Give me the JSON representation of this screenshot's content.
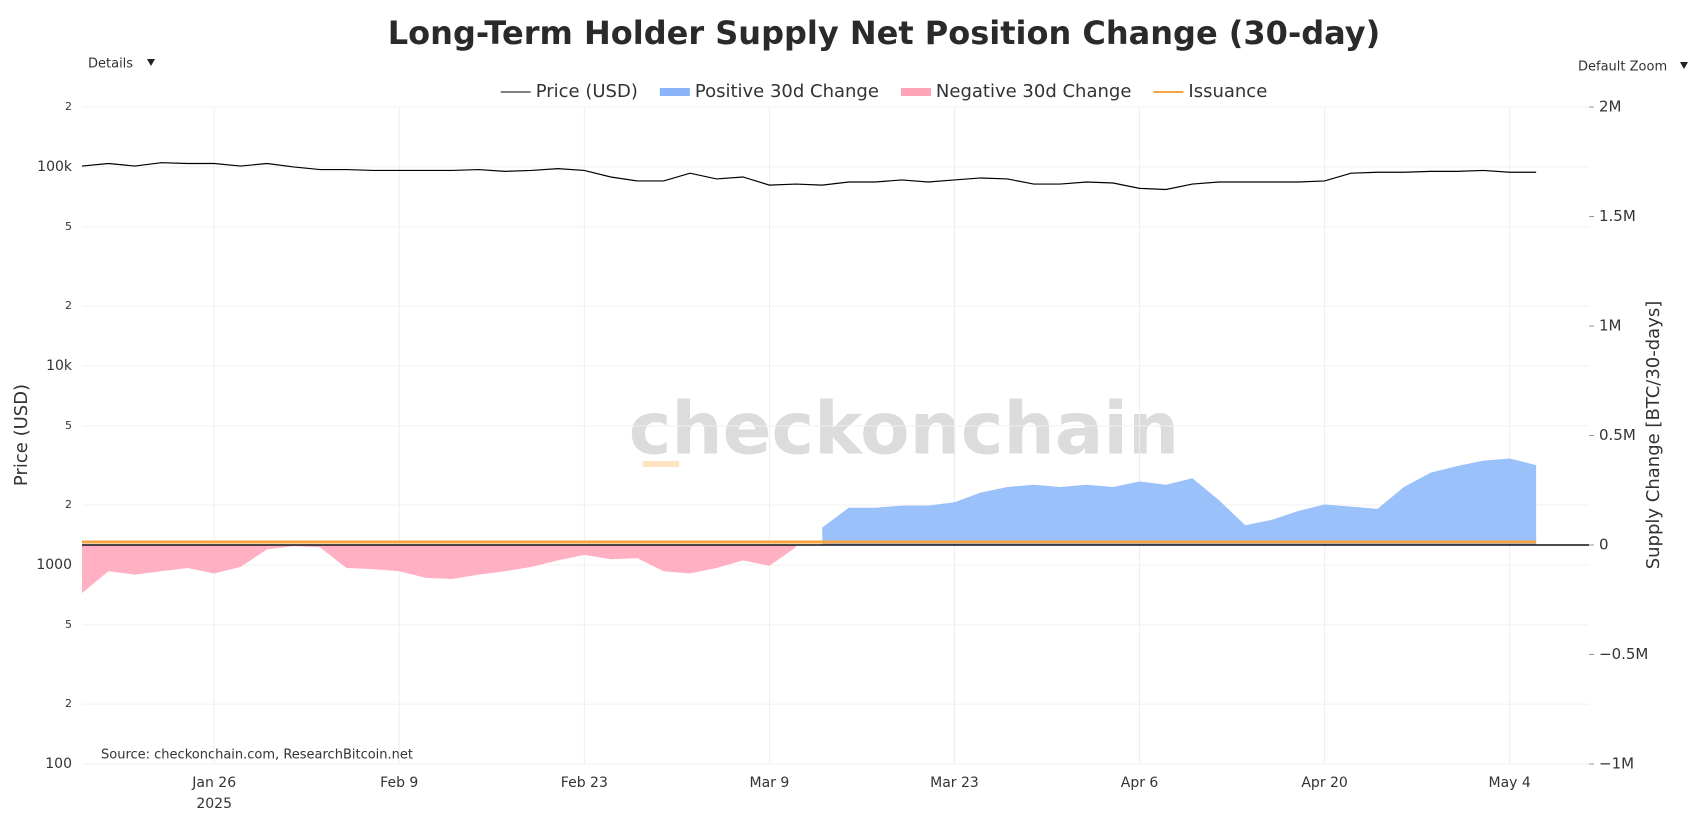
{
  "controls": {
    "details": "Details",
    "zoom": "Default Zoom"
  },
  "chart_data": {
    "type": "line",
    "title": "Long-Term Holder Supply Net Position Change (30-day)",
    "ylabel": "Price (USD)",
    "y2label": "Supply Change [BTC/30-days]",
    "watermark": "checkonchain",
    "source": "Source: checkonchain.com, ResearchBitcoin.net",
    "log_y": true,
    "grid": true,
    "xlim": [
      "2025-01-16",
      "2025-05-10"
    ],
    "xticks": [
      {
        "value": "2025-01-26",
        "label": "Jan 26",
        "sublabel": "2025"
      },
      {
        "value": "2025-02-09",
        "label": "Feb 9"
      },
      {
        "value": "2025-02-23",
        "label": "Feb 23"
      },
      {
        "value": "2025-03-09",
        "label": "Mar 9"
      },
      {
        "value": "2025-03-23",
        "label": "Mar 23"
      },
      {
        "value": "2025-04-06",
        "label": "Apr 6"
      },
      {
        "value": "2025-04-20",
        "label": "Apr 20"
      },
      {
        "value": "2025-05-04",
        "label": "May 4"
      }
    ],
    "ylim": [
      100,
      200000
    ],
    "yticks": [
      100,
      {
        "value": 200,
        "label": "2"
      },
      {
        "value": 500,
        "label": "5"
      },
      1000,
      {
        "value": 2000,
        "label": "2"
      },
      {
        "value": 5000,
        "label": "5"
      },
      {
        "value": 10000,
        "label": "10k"
      },
      {
        "value": 20000,
        "label": "2"
      },
      {
        "value": 50000,
        "label": "5"
      },
      {
        "value": 100000,
        "label": "100k"
      },
      {
        "value": 200000,
        "label": "2"
      }
    ],
    "y2lim": [
      -1000000,
      2000000
    ],
    "y2ticks": [
      {
        "value": -1000000,
        "label": "−1M"
      },
      {
        "value": -500000,
        "label": "−0.5M"
      },
      0,
      {
        "value": 500000,
        "label": "0.5M"
      },
      {
        "value": 1000000,
        "label": "1M"
      },
      {
        "value": 1500000,
        "label": "1.5M"
      },
      {
        "value": 2000000,
        "label": "2M"
      }
    ],
    "x": [
      "2025-01-16",
      "2025-01-18",
      "2025-01-20",
      "2025-01-22",
      "2025-01-24",
      "2025-01-26",
      "2025-01-28",
      "2025-01-30",
      "2025-02-01",
      "2025-02-03",
      "2025-02-05",
      "2025-02-07",
      "2025-02-09",
      "2025-02-11",
      "2025-02-13",
      "2025-02-15",
      "2025-02-17",
      "2025-02-19",
      "2025-02-21",
      "2025-02-23",
      "2025-02-25",
      "2025-02-27",
      "2025-03-01",
      "2025-03-03",
      "2025-03-05",
      "2025-03-07",
      "2025-03-09",
      "2025-03-11",
      "2025-03-13",
      "2025-03-15",
      "2025-03-17",
      "2025-03-19",
      "2025-03-21",
      "2025-03-23",
      "2025-03-25",
      "2025-03-27",
      "2025-03-29",
      "2025-03-31",
      "2025-04-02",
      "2025-04-04",
      "2025-04-06",
      "2025-04-08",
      "2025-04-10",
      "2025-04-12",
      "2025-04-14",
      "2025-04-16",
      "2025-04-18",
      "2025-04-20",
      "2025-04-22",
      "2025-04-24",
      "2025-04-26",
      "2025-04-28",
      "2025-04-30",
      "2025-05-02",
      "2025-05-04",
      "2025-05-06"
    ],
    "series": [
      {
        "name": "Price (USD)",
        "color": "#000000",
        "mark": "line",
        "axis": "y",
        "values": [
          101000,
          104000,
          101000,
          105000,
          104000,
          104000,
          101000,
          104000,
          100000,
          97000,
          97000,
          96000,
          96000,
          96000,
          96000,
          97000,
          95000,
          96000,
          98000,
          96000,
          89000,
          85000,
          85000,
          93000,
          87000,
          89000,
          81000,
          82000,
          81000,
          84000,
          84000,
          86000,
          84000,
          86000,
          88000,
          87000,
          82000,
          82000,
          84000,
          83000,
          78000,
          77000,
          82000,
          84000,
          84000,
          84000,
          84000,
          85000,
          93000,
          94000,
          94000,
          95000,
          95000,
          96000,
          94000,
          94000
        ]
      },
      {
        "name": "Positive 30d Change",
        "color": "#8ab6f9",
        "mark": "area",
        "axis": "y2",
        "values": [
          null,
          null,
          null,
          null,
          null,
          null,
          null,
          null,
          null,
          null,
          null,
          null,
          null,
          null,
          null,
          null,
          null,
          null,
          null,
          null,
          null,
          null,
          null,
          null,
          null,
          null,
          null,
          null,
          80000,
          170000,
          170000,
          180000,
          180000,
          195000,
          240000,
          265000,
          275000,
          265000,
          275000,
          265000,
          290000,
          275000,
          305000,
          205000,
          90000,
          115000,
          155000,
          185000,
          175000,
          165000,
          265000,
          330000,
          360000,
          385000,
          395000,
          365000
        ]
      },
      {
        "name": "Negative 30d Change",
        "color": "#ffa3b8",
        "mark": "area",
        "axis": "y2",
        "values": [
          -220000,
          -120000,
          -135000,
          -120000,
          -105000,
          -130000,
          -100000,
          -20000,
          -5000,
          -10000,
          -105000,
          -110000,
          -120000,
          -150000,
          -155000,
          -135000,
          -120000,
          -100000,
          -70000,
          -45000,
          -65000,
          -60000,
          -120000,
          -130000,
          -105000,
          -70000,
          -95000,
          -10000,
          null,
          null,
          null,
          null,
          null,
          null,
          null,
          null,
          null,
          null,
          null,
          null,
          null,
          null,
          null,
          null,
          null,
          null,
          null,
          null,
          null,
          null,
          null,
          null,
          null,
          null,
          null,
          null
        ]
      },
      {
        "name": "Issuance",
        "color": "#f4a540",
        "mark": "line",
        "axis": "y2",
        "values": [
          13500,
          13500,
          13500,
          13500,
          13500,
          13500,
          13500,
          13500,
          13500,
          13500,
          13500,
          13500,
          13500,
          13500,
          13500,
          13500,
          13500,
          13500,
          13500,
          13500,
          13500,
          13500,
          13500,
          13500,
          13500,
          13500,
          13500,
          13500,
          13500,
          13500,
          13500,
          13500,
          13500,
          13500,
          13500,
          13500,
          13500,
          13500,
          13500,
          13500,
          13500,
          13500,
          13500,
          13500,
          13500,
          13500,
          13500,
          13500,
          13500,
          13500,
          13500,
          13500,
          13500,
          13500,
          13500,
          13500
        ]
      }
    ]
  }
}
